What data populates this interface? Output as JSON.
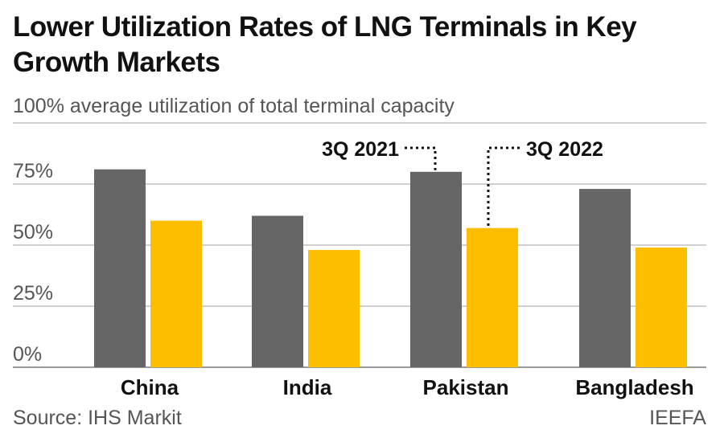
{
  "chart_data": {
    "type": "bar",
    "title": "Lower Utilization Rates of LNG Terminals in Key Growth Markets",
    "subtitle": "100% average utilization of total terminal capacity",
    "categories": [
      "China",
      "India",
      "Pakistan",
      "Bangladesh"
    ],
    "series": [
      {
        "name": "3Q 2021",
        "values": [
          81,
          62,
          80,
          73
        ],
        "color": "#666666"
      },
      {
        "name": "3Q 2022",
        "values": [
          60,
          48,
          57,
          49
        ],
        "color": "#FDBE00"
      }
    ],
    "yticks": [
      "0%",
      "25%",
      "50%",
      "75%"
    ],
    "ytick_values": [
      0,
      25,
      50,
      75,
      100
    ],
    "ylim": [
      0,
      100
    ],
    "grid": true,
    "legend": "annotations above Pakistan bars"
  },
  "footer": {
    "source": "Source: IHS Markit",
    "brand": "IEEFA"
  }
}
